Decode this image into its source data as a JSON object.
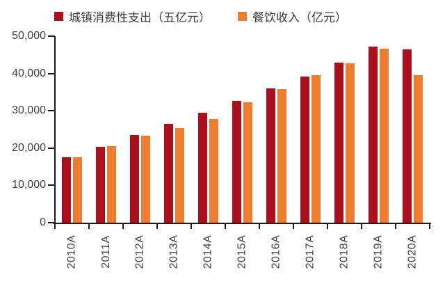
{
  "chart_data": {
    "type": "bar",
    "title": "",
    "xlabel": "",
    "ylabel": "",
    "categories": [
      "2010A",
      "2011A",
      "2012A",
      "2013A",
      "2014A",
      "2015A",
      "2016A",
      "2017A",
      "2018A",
      "2019A",
      "2020A"
    ],
    "series": [
      {
        "name": "城镇消费性支出（五亿元）",
        "color": "#AD101D",
        "values": [
          17500,
          20400,
          23500,
          26500,
          29400,
          32700,
          36100,
          39200,
          43000,
          47200,
          46500
        ]
      },
      {
        "name": "餐饮收入（亿元）",
        "color": "#EE7D2F",
        "values": [
          17600,
          20500,
          23400,
          25400,
          27900,
          32300,
          35800,
          39600,
          42700,
          46700,
          39500
        ]
      }
    ],
    "ylim": [
      0,
      50000
    ],
    "yticks": [
      0,
      10000,
      20000,
      30000,
      40000,
      50000
    ],
    "ytick_labels": [
      "0",
      "10,000",
      "20,000",
      "30,000",
      "40,000",
      "50,000"
    ],
    "grid": false,
    "legend_position": "top",
    "axis_color": "#1a1a1a",
    "tick_label_color": "#404040"
  }
}
